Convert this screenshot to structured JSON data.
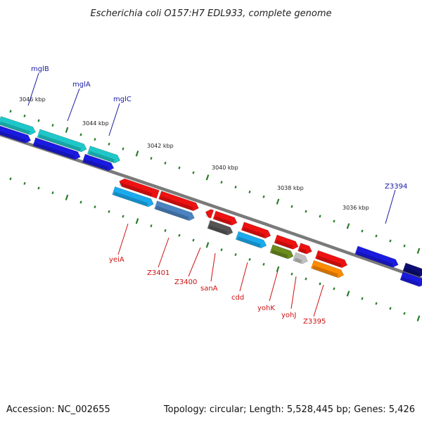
{
  "title": "Escherichia coli O157:H7 EDL933, complete genome",
  "footer": {
    "accession": "Accession: NC_002655",
    "topology": "Topology: circular; Length: 5,528,445 bp; Genes: 5,426"
  },
  "kbp_ticks": [
    "3046 kbp",
    "3044 kbp",
    "3042 kbp",
    "3040 kbp",
    "3038 kbp",
    "3036 kbp"
  ],
  "top_labels": [
    "mglB",
    "mglA",
    "mglC",
    "Z3394"
  ],
  "bottom_labels": [
    "yeiA",
    "Z3401",
    "Z3400",
    "sanA",
    "cdd",
    "yohK",
    "yohJ",
    "Z3395"
  ],
  "colors": {
    "backbone": "#7a7a7a",
    "tick": "#2a7d2a",
    "top_label": "#1a1aa6",
    "bottom_label": "#cc1111",
    "cyan": "#1fc8c8",
    "blue": "#1a1ae0",
    "navy": "#0c0c72",
    "red": "#ee1111",
    "sky": "#1aaaee",
    "steel": "#4a84c0",
    "grey": "#c0c0c0",
    "dark_grey": "#555555",
    "olive": "#6b8c1e",
    "orange": "#ff8c00"
  }
}
